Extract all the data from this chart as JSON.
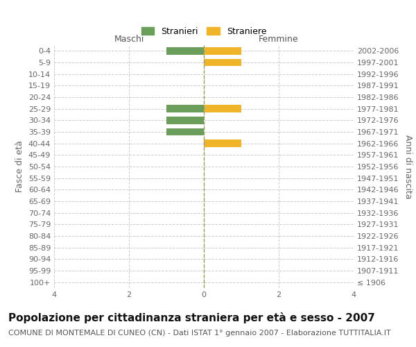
{
  "age_groups": [
    "0-4",
    "5-9",
    "10-14",
    "15-19",
    "20-24",
    "25-29",
    "30-34",
    "35-39",
    "40-44",
    "45-49",
    "50-54",
    "55-59",
    "60-64",
    "65-69",
    "70-74",
    "75-79",
    "80-84",
    "85-89",
    "90-94",
    "95-99",
    "100+"
  ],
  "birth_years": [
    "2002-2006",
    "1997-2001",
    "1992-1996",
    "1987-1991",
    "1982-1986",
    "1977-1981",
    "1972-1976",
    "1967-1971",
    "1962-1966",
    "1957-1961",
    "1952-1956",
    "1947-1951",
    "1942-1946",
    "1937-1941",
    "1932-1936",
    "1927-1931",
    "1922-1926",
    "1917-1921",
    "1912-1916",
    "1907-1911",
    "≤ 1906"
  ],
  "stranieri": [
    1,
    0,
    0,
    0,
    0,
    1,
    1,
    1,
    0,
    0,
    0,
    0,
    0,
    0,
    0,
    0,
    0,
    0,
    0,
    0,
    0
  ],
  "straniere": [
    1,
    1,
    0,
    0,
    0,
    1,
    0,
    0,
    1,
    0,
    0,
    0,
    0,
    0,
    0,
    0,
    0,
    0,
    0,
    0,
    0
  ],
  "color_stranieri": "#6a9e5a",
  "color_straniere": "#f0b429",
  "xlim": 4,
  "title": "Popolazione per cittadinanza straniera per età e sesso - 2007",
  "subtitle": "COMUNE DI MONTEMALE DI CUNEO (CN) - Dati ISTAT 1° gennaio 2007 - Elaborazione TUTTITALIA.IT",
  "ylabel_left": "Fasce di età",
  "ylabel_right": "Anni di nascita",
  "label_maschi": "Maschi",
  "label_femmine": "Femmine",
  "legend_stranieri": "Stranieri",
  "legend_straniere": "Straniere",
  "background_color": "#ffffff",
  "grid_color": "#cccccc",
  "bar_height": 0.65,
  "title_fontsize": 11,
  "subtitle_fontsize": 8,
  "tick_fontsize": 8,
  "label_fontsize": 9,
  "axis_line_color": "#999966"
}
